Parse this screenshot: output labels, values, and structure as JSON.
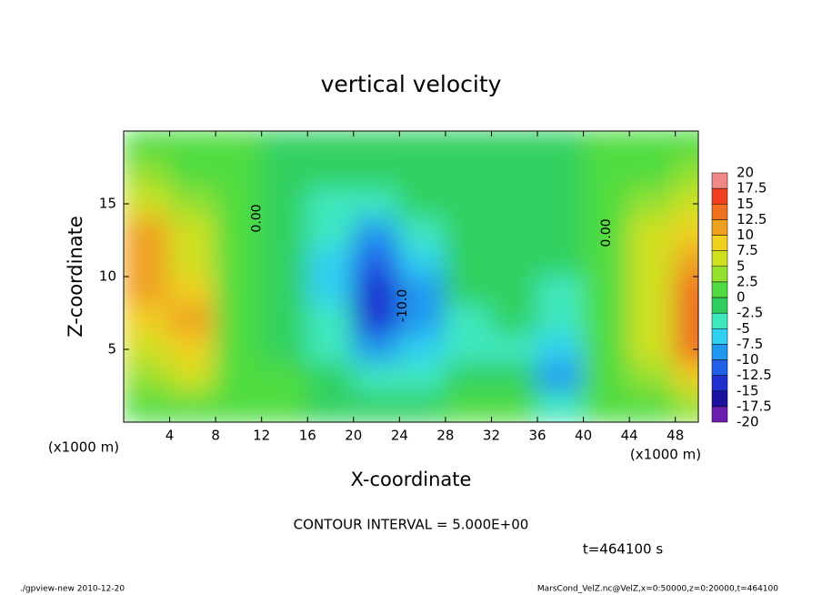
{
  "chart_data": {
    "type": "contour",
    "title": "vertical velocity",
    "x_label": "X-coordinate",
    "y_label": "Z-coordinate",
    "x_unit": "(x1000 m)",
    "xlim": [
      0,
      50
    ],
    "ylim": [
      0,
      20
    ],
    "xticks": [
      4,
      8,
      12,
      16,
      20,
      24,
      28,
      32,
      36,
      40,
      44,
      48
    ],
    "yticks": [
      5,
      10,
      15
    ],
    "x": [
      2,
      6,
      10,
      14,
      18,
      22,
      26,
      30,
      34,
      38,
      42,
      46,
      50
    ],
    "z": [
      19,
      17,
      15,
      13,
      11,
      9,
      7,
      5,
      3,
      1
    ],
    "values": [
      [
        1,
        1,
        0.5,
        -1,
        -1,
        -1,
        -1,
        -1,
        -1,
        -1,
        0.5,
        1,
        1
      ],
      [
        3,
        2,
        0.5,
        -1,
        -2,
        -2.5,
        -1.5,
        -1,
        -1,
        -1,
        0.5,
        2,
        3
      ],
      [
        6,
        4,
        1,
        -1,
        -3,
        -5,
        -2,
        -1,
        -1,
        -1,
        0.5,
        3,
        6
      ],
      [
        11,
        6,
        1,
        -1,
        -4,
        -8,
        -4,
        -1.5,
        -1,
        -1,
        1,
        5,
        9
      ],
      [
        12,
        7,
        1.5,
        -1,
        -6,
        -11,
        -6,
        -2,
        -1,
        -1,
        1,
        6,
        11
      ],
      [
        11,
        9,
        1.5,
        -1,
        -7,
        -14,
        -8,
        -2,
        -1,
        -3,
        1,
        7,
        13
      ],
      [
        9,
        12,
        2,
        -1,
        -5,
        -13,
        -8,
        -3,
        -2,
        -5,
        1,
        7,
        14
      ],
      [
        6,
        8,
        2,
        -1,
        -3,
        -10,
        -6,
        -3,
        -3,
        -6,
        1,
        6,
        13
      ],
      [
        4,
        5,
        1,
        0,
        -2,
        -5,
        -4,
        -2,
        -2,
        -8,
        0.5,
        4,
        9
      ],
      [
        2,
        2,
        0.5,
        0,
        -1,
        -2,
        -1,
        0,
        0,
        -3,
        0.5,
        2,
        4
      ]
    ],
    "colorbar": {
      "levels": [
        -20,
        -17.5,
        -15,
        -12.5,
        -10,
        -7.5,
        -5,
        -2.5,
        0,
        2.5,
        5,
        7.5,
        10,
        12.5,
        15,
        17.5,
        20
      ],
      "colors": [
        "#6a1fb0",
        "#1a10a0",
        "#1f30d0",
        "#2060e8",
        "#2098f0",
        "#30d0f0",
        "#40e8c0",
        "#30d060",
        "#50dc40",
        "#96e030",
        "#d0e020",
        "#f0d020",
        "#f0a020",
        "#f07020",
        "#f04020",
        "#f08888"
      ]
    },
    "annotations": [
      {
        "text": "0.00",
        "x": 11.6,
        "z": 14
      },
      {
        "text": "-10.0",
        "x": 24.3,
        "z": 8
      },
      {
        "text": "0.00",
        "x": 42,
        "z": 13
      }
    ],
    "contour_interval": "CONTOUR INTERVAL = 5.000E+00",
    "time": "t=464100 s",
    "footer_left": "./gpview-new  2010-12-20",
    "footer_right": "MarsCond_VelZ.nc@VelZ,x=0:50000,z=0:20000,t=464100"
  }
}
